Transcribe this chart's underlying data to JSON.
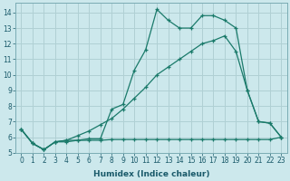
{
  "xlabel": "Humidex (Indice chaleur)",
  "bg_color": "#cce8ec",
  "grid_color": "#b0d0d4",
  "line_color": "#1a7a6a",
  "xlim": [
    -0.5,
    23.5
  ],
  "ylim": [
    5.0,
    14.6
  ],
  "yticks": [
    5,
    6,
    7,
    8,
    9,
    10,
    11,
    12,
    13,
    14
  ],
  "xticks": [
    0,
    1,
    2,
    3,
    4,
    5,
    6,
    7,
    8,
    9,
    10,
    11,
    12,
    13,
    14,
    15,
    16,
    17,
    18,
    19,
    20,
    21,
    22,
    23
  ],
  "line1_x": [
    0,
    1,
    2,
    3,
    4,
    5,
    6,
    7,
    8,
    9,
    10,
    11,
    12,
    13,
    14,
    15,
    16,
    17,
    18,
    19,
    20,
    21,
    22,
    23
  ],
  "line1_y": [
    6.5,
    5.6,
    5.2,
    5.7,
    5.8,
    5.8,
    5.9,
    5.9,
    7.8,
    8.1,
    10.3,
    11.6,
    14.2,
    13.5,
    13.0,
    13.0,
    13.8,
    13.8,
    13.5,
    13.0,
    9.0,
    7.0,
    6.9,
    6.0
  ],
  "line2_x": [
    0,
    1,
    2,
    3,
    4,
    5,
    6,
    7,
    8,
    9,
    10,
    11,
    12,
    13,
    14,
    15,
    16,
    17,
    18,
    19,
    20,
    21,
    22,
    23
  ],
  "line2_y": [
    6.5,
    5.6,
    5.2,
    5.7,
    5.8,
    6.1,
    6.4,
    6.8,
    7.2,
    7.8,
    8.5,
    9.2,
    10.0,
    10.5,
    11.0,
    11.5,
    12.0,
    12.2,
    12.5,
    11.5,
    9.0,
    7.0,
    6.9,
    6.0
  ],
  "line3_x": [
    0,
    1,
    2,
    3,
    4,
    5,
    6,
    7,
    8,
    9,
    10,
    11,
    12,
    13,
    14,
    15,
    16,
    17,
    18,
    19,
    20,
    21,
    22,
    23
  ],
  "line3_y": [
    6.5,
    5.6,
    5.2,
    5.7,
    5.7,
    5.8,
    5.8,
    5.8,
    5.85,
    5.85,
    5.85,
    5.85,
    5.85,
    5.85,
    5.85,
    5.85,
    5.85,
    5.85,
    5.85,
    5.85,
    5.85,
    5.85,
    5.85,
    6.0
  ],
  "tick_fontsize": 5.5,
  "xlabel_fontsize": 6.5
}
